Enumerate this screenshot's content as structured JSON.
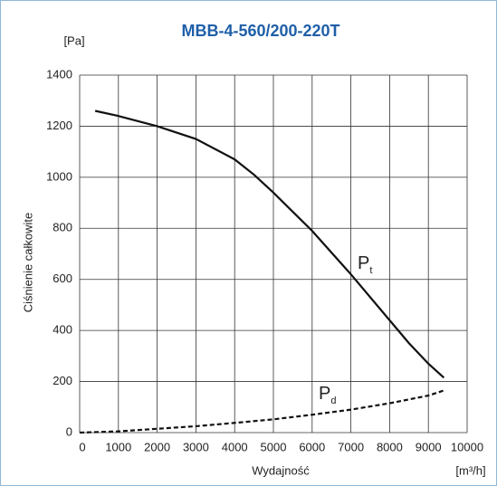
{
  "chart_data": {
    "type": "line",
    "title": "MBB-4-560/200-220T",
    "y_unit": "[Pa]",
    "ylabel": "Ciśnienie całkowite",
    "xlabel": "Wydajność",
    "x_unit": "[m³/h]",
    "xlim": [
      0,
      10000
    ],
    "xticks": [
      0,
      1000,
      2000,
      3000,
      4000,
      5000,
      6000,
      7000,
      8000,
      9000,
      10000
    ],
    "ylim": [
      0,
      1400
    ],
    "yticks": [
      0,
      200,
      400,
      600,
      800,
      1000,
      1200,
      1400
    ],
    "grid": true,
    "series": [
      {
        "name": "P",
        "subscript": "t",
        "color": "#111111",
        "dash": false,
        "x": [
          400,
          1000,
          2000,
          3000,
          4000,
          4500,
          5000,
          6000,
          7000,
          8000,
          8500,
          9000,
          9400
        ],
        "values": [
          1260,
          1240,
          1200,
          1150,
          1070,
          1010,
          940,
          790,
          620,
          440,
          350,
          270,
          215
        ]
      },
      {
        "name": "P",
        "subscript": "d",
        "color": "#111111",
        "dash": true,
        "x": [
          0,
          1000,
          2000,
          3000,
          4000,
          5000,
          6000,
          7000,
          8000,
          9000,
          9400
        ],
        "values": [
          0,
          5,
          15,
          25,
          38,
          52,
          70,
          90,
          115,
          145,
          165
        ]
      }
    ]
  }
}
